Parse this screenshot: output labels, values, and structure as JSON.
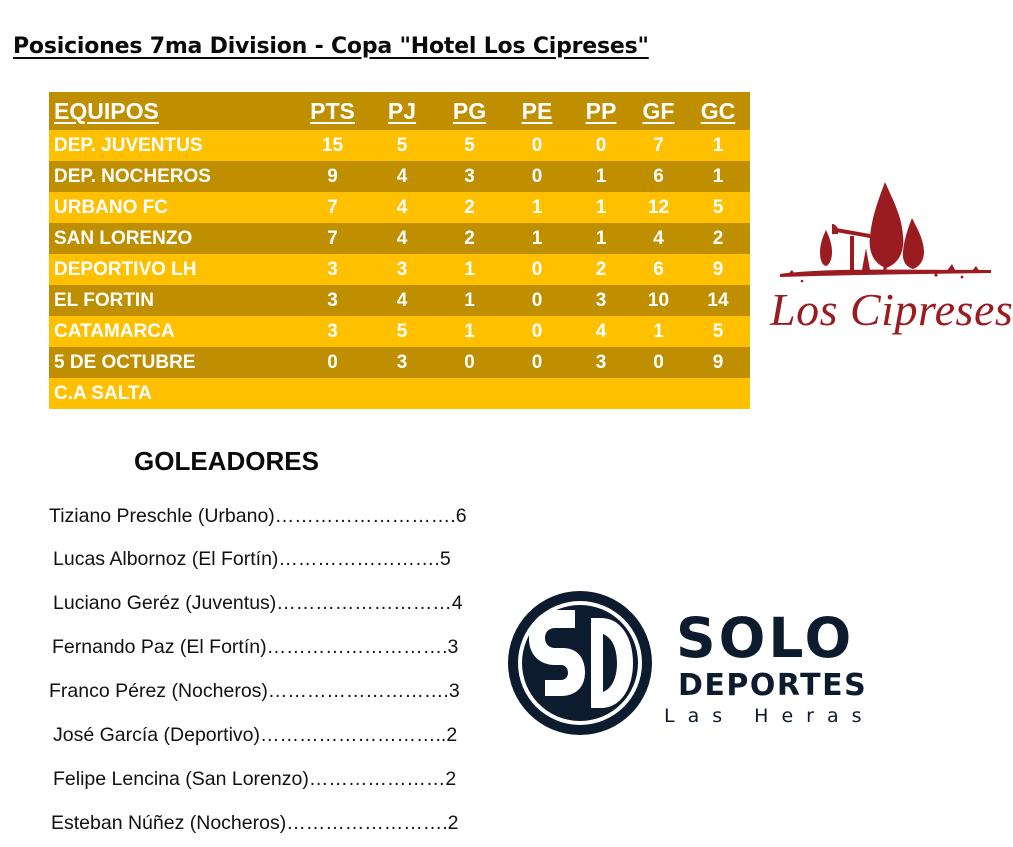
{
  "title": "Posiciones 7ma Division - Copa \"Hotel Los Cipreses\"",
  "standings": {
    "headers": [
      "EQUIPOS",
      "PTS",
      "PJ",
      "PG",
      "PE",
      "PP",
      "GF",
      "GC"
    ],
    "rows": [
      [
        "DEP. JUVENTUS",
        "15",
        "5",
        "5",
        "0",
        "0",
        "7",
        "1"
      ],
      [
        "DEP. NOCHEROS",
        "9",
        "4",
        "3",
        "0",
        "1",
        "6",
        "1"
      ],
      [
        "URBANO FC",
        "7",
        "4",
        "2",
        "1",
        "1",
        "12",
        "5"
      ],
      [
        "SAN LORENZO",
        "7",
        "4",
        "2",
        "1",
        "1",
        "4",
        "2"
      ],
      [
        "DEPORTIVO LH",
        "3",
        "3",
        "1",
        "0",
        "2",
        "6",
        "9"
      ],
      [
        "EL FORTIN",
        "3",
        "4",
        "1",
        "0",
        "3",
        "10",
        "14"
      ],
      [
        "CATAMARCA",
        "3",
        "5",
        "1",
        "0",
        "4",
        "1",
        "5"
      ],
      [
        "5 DE OCTUBRE",
        "0",
        "3",
        "0",
        "0",
        "3",
        "0",
        "9"
      ],
      [
        "C.A SALTA",
        "",
        "",
        "",
        "",
        "",
        "",
        ""
      ]
    ],
    "colors": {
      "light": "#ffc000",
      "dark": "#bf8f00",
      "text": "#ffffff"
    }
  },
  "sponsor_logo": {
    "text": "Los Cipreses",
    "color": "#9b1c20"
  },
  "scorers": {
    "title": "GOLEADORES",
    "entries": [
      "Tiziano Preschle (Urbano)……………………….6",
      "Lucas Albornoz (El Fortín)…………………….5",
      "Luciano Geréz (Juventus)………………………4",
      "Fernando Paz (El Fortín)……………………….3",
      "Franco Pérez (Nocheros)……………………….3",
      "José García (Deportivo)………………………..2",
      "Felipe Lencina (San Lorenzo)…………………2",
      "Esteban Núñez (Nocheros)…………………….2"
    ]
  },
  "media_logo": {
    "monogram": "SD",
    "line1": "SOLO",
    "line2": "DEPORTES",
    "line3": "Las Heras",
    "color": "#0d1b2e"
  }
}
